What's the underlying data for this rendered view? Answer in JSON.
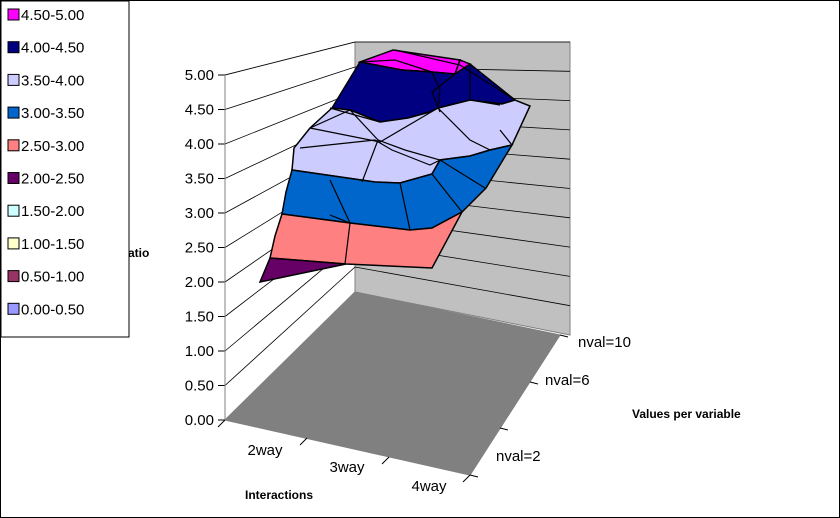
{
  "chart_data": {
    "type": "surface",
    "title": "",
    "zlabel": "atio",
    "xlabel": "Interactions",
    "ylabel": "Values per variable",
    "x_categories": [
      "2way",
      "3way",
      "4way"
    ],
    "y_categories": [
      "nval=2",
      "nval=6",
      "nval=10"
    ],
    "zlim": [
      0,
      5
    ],
    "z_ticks": [
      "0.00",
      "0.50",
      "1.00",
      "1.50",
      "2.00",
      "2.50",
      "3.00",
      "3.50",
      "4.00",
      "4.50",
      "5.00"
    ],
    "legend": [
      {
        "label": "4.50-5.00",
        "color": "#ff00ff"
      },
      {
        "label": "4.00-4.50",
        "color": "#000080"
      },
      {
        "label": "3.50-4.00",
        "color": "#ccccff"
      },
      {
        "label": "3.00-3.50",
        "color": "#0066cc"
      },
      {
        "label": "2.50-3.00",
        "color": "#ff8080"
      },
      {
        "label": "2.00-2.50",
        "color": "#660066"
      },
      {
        "label": "1.50-2.00",
        "color": "#ccffff"
      },
      {
        "label": "1.00-1.50",
        "color": "#ffffcc"
      },
      {
        "label": "0.50-1.00",
        "color": "#993366"
      },
      {
        "label": "0.00-0.50",
        "color": "#9999ff"
      }
    ]
  }
}
